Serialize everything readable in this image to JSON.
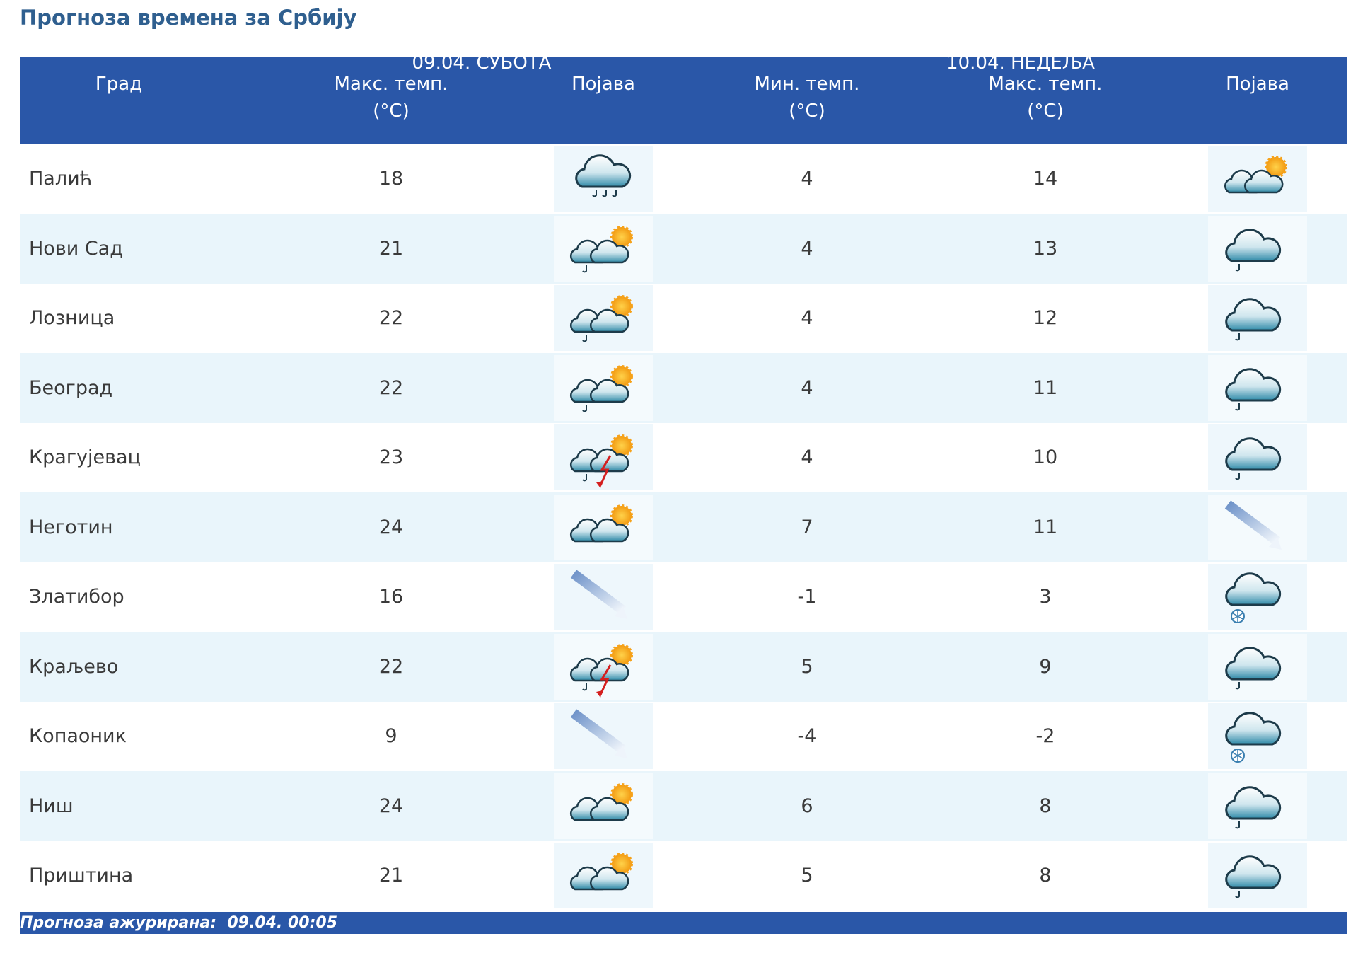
{
  "title": "Прогноза времена за Србију",
  "table": {
    "header": {
      "city": "Град",
      "day1": "09.04. СУБОТА",
      "day2": "10.04. НЕДЕЉА",
      "max1": "Макс. темп.",
      "unit1": "(°C)",
      "icon1": "Појава",
      "min2": "Мин. темп.",
      "unit2": "(°C)",
      "max2": "Макс. темп.",
      "unit3": "(°C)",
      "icon2": "Појава"
    },
    "rows": [
      [
        "Палић",
        18,
        4,
        14
      ],
      [
        "Нови Сад",
        21,
        4,
        13
      ],
      [
        "Лозница",
        22,
        4,
        12
      ],
      [
        "Београд",
        22,
        4,
        11
      ],
      [
        "Крагујевац",
        23,
        4,
        10
      ],
      [
        "Неготин",
        24,
        7,
        11
      ],
      [
        "Златибор",
        16,
        -1,
        3
      ],
      [
        "Краљево",
        22,
        5,
        9
      ],
      [
        "Копаоник",
        9,
        -4,
        -2
      ],
      [
        "Ниш",
        24,
        6,
        8
      ],
      [
        "Приштина",
        21,
        5,
        8
      ]
    ]
  },
  "footer": "Прогноза ажурирана:  09.04. 00:05"
}
